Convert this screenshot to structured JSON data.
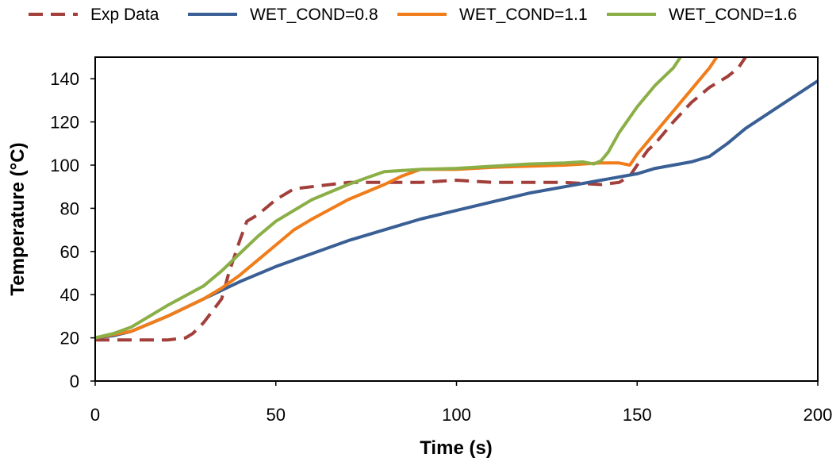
{
  "chart_data": {
    "type": "line",
    "title": "",
    "xlabel": "Time (s)",
    "ylabel": "Temperature (°C)",
    "xlim": [
      0,
      200
    ],
    "ylim": [
      0,
      150
    ],
    "xticks": [
      0,
      50,
      100,
      150,
      200
    ],
    "yticks": [
      0,
      20,
      40,
      60,
      80,
      100,
      120,
      140
    ],
    "grid": false,
    "legend_position": "top",
    "series": [
      {
        "name": "Exp Data",
        "color": "#a33f3b",
        "dash": "dashed",
        "x": [
          0,
          10,
          20,
          25,
          27,
          30,
          35,
          37,
          40,
          42,
          45,
          50,
          55,
          60,
          65,
          70,
          80,
          90,
          100,
          110,
          120,
          130,
          140,
          145,
          148,
          150,
          153,
          155,
          158,
          160,
          165,
          170,
          175,
          178,
          180
        ],
        "y": [
          19,
          19,
          19,
          20,
          22,
          27,
          38,
          50,
          65,
          74,
          77,
          84,
          89,
          90,
          91,
          92,
          92,
          92,
          93,
          92,
          92,
          92,
          91,
          92,
          95,
          100,
          107,
          110,
          116,
          120,
          129,
          136,
          141,
          145,
          150
        ]
      },
      {
        "name": "WET_COND=0.8",
        "color": "#3a5f95",
        "dash": "solid",
        "x": [
          0,
          5,
          10,
          20,
          30,
          40,
          50,
          60,
          70,
          80,
          90,
          100,
          110,
          120,
          130,
          140,
          150,
          155,
          160,
          165,
          170,
          175,
          180,
          190,
          200
        ],
        "y": [
          20,
          21,
          23,
          30,
          38,
          46,
          53,
          59,
          65,
          70,
          75,
          79,
          83,
          87,
          90,
          93,
          96,
          98.5,
          100,
          101.5,
          104,
          110,
          117,
          128,
          139
        ]
      },
      {
        "name": "WET_COND=1.1",
        "color": "#f07d1a",
        "dash": "solid",
        "x": [
          0,
          10,
          20,
          30,
          35,
          40,
          45,
          50,
          55,
          60,
          70,
          80,
          85,
          90,
          100,
          110,
          120,
          130,
          140,
          145,
          148,
          150,
          155,
          160,
          165,
          170,
          172
        ],
        "y": [
          20,
          23,
          30,
          38,
          43,
          49,
          56,
          63,
          70,
          75,
          84,
          91,
          95,
          98,
          98,
          99,
          99.5,
          100,
          101,
          101,
          100,
          105,
          115,
          125,
          135,
          145,
          150
        ]
      },
      {
        "name": "WET_COND=1.6",
        "color": "#8baf47",
        "dash": "solid",
        "x": [
          0,
          5,
          10,
          20,
          30,
          35,
          40,
          45,
          50,
          55,
          60,
          70,
          75,
          80,
          90,
          100,
          110,
          120,
          130,
          135,
          138,
          140,
          142,
          145,
          150,
          155,
          160,
          162
        ],
        "y": [
          20,
          22,
          25,
          35,
          44,
          51,
          59,
          67,
          74,
          79,
          84,
          91,
          94,
          97,
          98,
          98.5,
          99.5,
          100.5,
          101,
          101.5,
          100.5,
          102,
          106,
          115,
          127,
          137,
          145,
          150
        ]
      }
    ]
  }
}
